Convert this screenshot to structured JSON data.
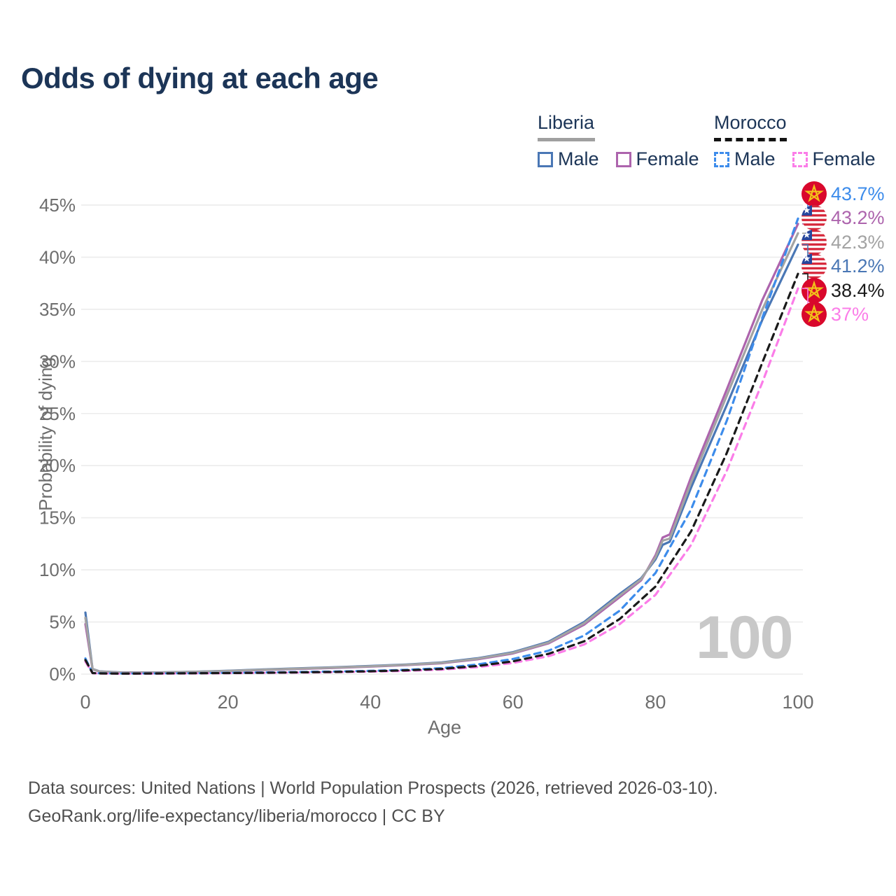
{
  "title": "Odds of dying at each age",
  "legend": {
    "groups": [
      {
        "name": "Liberia",
        "line_style": "solid",
        "underline_color": "#a0a0a0",
        "items": [
          {
            "label": "Male",
            "color": "#4a77b5"
          },
          {
            "label": "Female",
            "color": "#ad64ad"
          }
        ]
      },
      {
        "name": "Morocco",
        "line_style": "dashed",
        "underline_color": "#141414",
        "items": [
          {
            "label": "Male",
            "color": "#3d8ceb"
          },
          {
            "label": "Female",
            "color": "#fb7de8"
          }
        ]
      }
    ]
  },
  "watermark": "100",
  "footer": {
    "line1": "Data sources: United Nations | World Population Prospects (2026, retrieved 2026-03-10).",
    "line2": "GeoRank.org/life-expectancy/liberia/morocco | CC BY"
  },
  "chart_data": {
    "type": "line",
    "title": "Odds of dying at each age",
    "xlabel": "Age",
    "ylabel": "Probability of dying",
    "xlim": [
      0,
      100
    ],
    "ylim": [
      0,
      45
    ],
    "y_unit": "%",
    "grid": "horizontal-only",
    "x_ticks": [
      {
        "value": 0,
        "label": "0"
      },
      {
        "value": 20,
        "label": "20"
      },
      {
        "value": 40,
        "label": "40"
      },
      {
        "value": 60,
        "label": "60"
      },
      {
        "value": 80,
        "label": "80"
      },
      {
        "value": 100,
        "label": "100"
      }
    ],
    "y_ticks": [
      {
        "value": 0,
        "label": "0%"
      },
      {
        "value": 5,
        "label": "5%"
      },
      {
        "value": 10,
        "label": "10%"
      },
      {
        "value": 15,
        "label": "15%"
      },
      {
        "value": 20,
        "label": "20%"
      },
      {
        "value": 25,
        "label": "25%"
      },
      {
        "value": 30,
        "label": "30%"
      },
      {
        "value": 35,
        "label": "35%"
      },
      {
        "value": 40,
        "label": "40%"
      },
      {
        "value": 45,
        "label": "45%"
      }
    ],
    "series": [
      {
        "name": "Liberia Male",
        "country": "Liberia",
        "sex": "Male",
        "color": "#4a77b5",
        "dash": false,
        "flag": "liberia",
        "end_label": "41.2%",
        "end_value": 41.2,
        "points": [
          [
            0,
            5.9
          ],
          [
            1,
            0.5
          ],
          [
            2,
            0.26
          ],
          [
            5,
            0.16
          ],
          [
            10,
            0.16
          ],
          [
            15,
            0.22
          ],
          [
            20,
            0.32
          ],
          [
            25,
            0.44
          ],
          [
            30,
            0.56
          ],
          [
            35,
            0.66
          ],
          [
            40,
            0.78
          ],
          [
            45,
            0.92
          ],
          [
            50,
            1.12
          ],
          [
            55,
            1.52
          ],
          [
            60,
            2.1
          ],
          [
            65,
            3.1
          ],
          [
            70,
            5.0
          ],
          [
            75,
            7.7
          ],
          [
            78,
            9.2
          ],
          [
            80,
            11.0
          ],
          [
            81,
            12.4
          ],
          [
            82,
            12.7
          ],
          [
            85,
            17.9
          ],
          [
            90,
            25.8
          ],
          [
            95,
            34.0
          ],
          [
            100,
            41.2
          ]
        ]
      },
      {
        "name": "Liberia Female",
        "country": "Liberia",
        "sex": "Female",
        "color": "#ad64ad",
        "dash": false,
        "flag": "liberia",
        "end_label": "43.2%",
        "end_value": 43.2,
        "points": [
          [
            0,
            4.8
          ],
          [
            1,
            0.46
          ],
          [
            2,
            0.24
          ],
          [
            5,
            0.14
          ],
          [
            10,
            0.14
          ],
          [
            15,
            0.2
          ],
          [
            20,
            0.28
          ],
          [
            25,
            0.4
          ],
          [
            30,
            0.5
          ],
          [
            35,
            0.6
          ],
          [
            40,
            0.72
          ],
          [
            45,
            0.86
          ],
          [
            50,
            1.04
          ],
          [
            55,
            1.42
          ],
          [
            60,
            1.98
          ],
          [
            65,
            2.95
          ],
          [
            70,
            4.75
          ],
          [
            75,
            7.4
          ],
          [
            78,
            9.0
          ],
          [
            80,
            11.4
          ],
          [
            81,
            13.1
          ],
          [
            82,
            13.4
          ],
          [
            85,
            18.9
          ],
          [
            90,
            27.3
          ],
          [
            95,
            35.9
          ],
          [
            100,
            43.2
          ]
        ]
      },
      {
        "name": "Liberia Both sexes",
        "country": "Liberia",
        "sex": "Both",
        "color": "#a3a3a3",
        "dash": false,
        "flag": "liberia",
        "end_label": "42.3%",
        "end_value": 42.3,
        "points": [
          [
            0,
            5.4
          ],
          [
            1,
            0.48
          ],
          [
            2,
            0.25
          ],
          [
            5,
            0.15
          ],
          [
            10,
            0.15
          ],
          [
            15,
            0.21
          ],
          [
            20,
            0.3
          ],
          [
            25,
            0.42
          ],
          [
            30,
            0.53
          ],
          [
            35,
            0.63
          ],
          [
            40,
            0.75
          ],
          [
            45,
            0.89
          ],
          [
            50,
            1.08
          ],
          [
            55,
            1.47
          ],
          [
            60,
            2.04
          ],
          [
            65,
            3.02
          ],
          [
            70,
            4.88
          ],
          [
            75,
            7.55
          ],
          [
            78,
            9.1
          ],
          [
            80,
            11.2
          ],
          [
            81,
            12.8
          ],
          [
            82,
            13.0
          ],
          [
            85,
            18.4
          ],
          [
            90,
            26.7
          ],
          [
            95,
            35.0
          ],
          [
            100,
            42.3
          ]
        ]
      },
      {
        "name": "Morocco Male",
        "country": "Morocco",
        "sex": "Male",
        "color": "#3d8ceb",
        "dash": true,
        "flag": "morocco",
        "end_label": "43.7%",
        "end_value": 43.7,
        "points": [
          [
            0,
            1.5
          ],
          [
            1,
            0.11
          ],
          [
            2,
            0.08
          ],
          [
            5,
            0.06
          ],
          [
            10,
            0.07
          ],
          [
            15,
            0.09
          ],
          [
            20,
            0.12
          ],
          [
            25,
            0.16
          ],
          [
            30,
            0.2
          ],
          [
            35,
            0.25
          ],
          [
            40,
            0.31
          ],
          [
            45,
            0.41
          ],
          [
            50,
            0.57
          ],
          [
            55,
            0.92
          ],
          [
            60,
            1.45
          ],
          [
            65,
            2.25
          ],
          [
            70,
            3.7
          ],
          [
            75,
            6.1
          ],
          [
            80,
            9.7
          ],
          [
            85,
            15.8
          ],
          [
            90,
            24.3
          ],
          [
            95,
            34.2
          ],
          [
            100,
            43.7
          ]
        ]
      },
      {
        "name": "Morocco Female",
        "country": "Morocco",
        "sex": "Female",
        "color": "#fb7de8",
        "dash": true,
        "flag": "morocco",
        "end_label": "37%",
        "end_value": 37.0,
        "points": [
          [
            0,
            1.2
          ],
          [
            1,
            0.09
          ],
          [
            2,
            0.06
          ],
          [
            5,
            0.04
          ],
          [
            10,
            0.05
          ],
          [
            15,
            0.07
          ],
          [
            20,
            0.09
          ],
          [
            25,
            0.12
          ],
          [
            30,
            0.15
          ],
          [
            35,
            0.19
          ],
          [
            40,
            0.24
          ],
          [
            45,
            0.31
          ],
          [
            50,
            0.43
          ],
          [
            55,
            0.67
          ],
          [
            60,
            1.07
          ],
          [
            65,
            1.72
          ],
          [
            70,
            2.85
          ],
          [
            75,
            4.8
          ],
          [
            80,
            7.6
          ],
          [
            85,
            12.4
          ],
          [
            90,
            19.5
          ],
          [
            95,
            28.0
          ],
          [
            100,
            37.0
          ]
        ]
      },
      {
        "name": "Morocco Both sexes",
        "country": "Morocco",
        "sex": "Both",
        "color": "#1a1a1a",
        "dash": true,
        "flag": "morocco",
        "end_label": "38.4%",
        "end_value": 38.4,
        "points": [
          [
            0,
            1.35
          ],
          [
            1,
            0.1
          ],
          [
            2,
            0.07
          ],
          [
            5,
            0.05
          ],
          [
            10,
            0.06
          ],
          [
            15,
            0.08
          ],
          [
            20,
            0.1
          ],
          [
            25,
            0.13
          ],
          [
            30,
            0.17
          ],
          [
            35,
            0.21
          ],
          [
            40,
            0.27
          ],
          [
            45,
            0.36
          ],
          [
            50,
            0.5
          ],
          [
            55,
            0.78
          ],
          [
            60,
            1.22
          ],
          [
            65,
            1.95
          ],
          [
            70,
            3.15
          ],
          [
            75,
            5.3
          ],
          [
            80,
            8.4
          ],
          [
            85,
            13.7
          ],
          [
            90,
            21.2
          ],
          [
            95,
            29.9
          ],
          [
            100,
            38.4
          ]
        ]
      }
    ],
    "flag_colors": {
      "morocco_red": "#d9082c",
      "morocco_star": "#f2c21a",
      "liberia_red": "#d6273a",
      "liberia_blue": "#27479e",
      "liberia_star": "#ffffff"
    }
  }
}
